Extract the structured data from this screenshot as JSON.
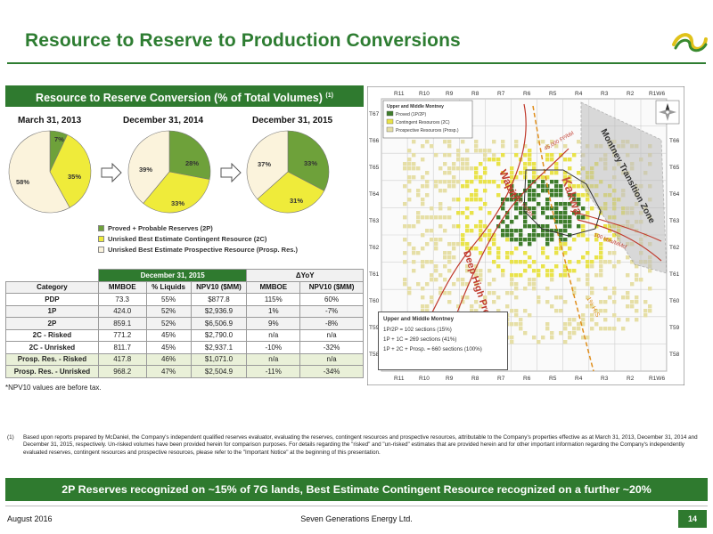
{
  "header": {
    "title": "Resource to Reserve to Production Conversions"
  },
  "left_panel": {
    "title": "Resource to Reserve Conversion (% of Total Volumes)",
    "title_sup": "(1)"
  },
  "pies": [
    {
      "title": "March 31, 2013",
      "labels": [
        "7%",
        "35%",
        "58%"
      ]
    },
    {
      "title": "December 31, 2014",
      "labels": [
        "28%",
        "33%",
        "39%"
      ]
    },
    {
      "title": "December 31, 2015",
      "labels": [
        "33%",
        "31%",
        "37%"
      ]
    }
  ],
  "chart_data": [
    {
      "type": "pie",
      "title": "March 31, 2013",
      "categories": [
        "Proved + Probable Reserves (2P)",
        "Unrisked Best Estimate Contingent Resource (2C)",
        "Unrisked Best Estimate Prospective Resource (Prosp. Res.)"
      ],
      "values": [
        7,
        35,
        58
      ]
    },
    {
      "type": "pie",
      "title": "December 31, 2014",
      "categories": [
        "Proved + Probable Reserves (2P)",
        "Unrisked Best Estimate Contingent Resource (2C)",
        "Unrisked Best Estimate Prospective Resource (Prosp. Res.)"
      ],
      "values": [
        28,
        33,
        39
      ]
    },
    {
      "type": "pie",
      "title": "December 31, 2015",
      "categories": [
        "Proved + Probable Reserves (2P)",
        "Unrisked Best Estimate Contingent Resource (2C)",
        "Unrisked Best Estimate Prospective Resource (Prosp. Res.)"
      ],
      "values": [
        33,
        31,
        37
      ]
    }
  ],
  "colors": {
    "proved": "#6ea13a",
    "contingent": "#efeb3a",
    "prospective": "#fbf3dc",
    "brand_green": "#2f7a2f"
  },
  "legend": [
    {
      "label": "Proved + Probable Reserves (2P)",
      "color": "#6ea13a"
    },
    {
      "label": "Unrisked Best Estimate Contingent Resource (2C)",
      "color": "#efeb3a"
    },
    {
      "label": "Unrisked Best Estimate Prospective Resource (Prosp. Res.)",
      "color": "#fbf3dc"
    }
  ],
  "table": {
    "group_dec": "December 31, 2015",
    "group_yoy": "ΔYoY",
    "columns": [
      "Category",
      "MMBOE",
      "% Liquids",
      "NPV10 ($MM)",
      "MMBOE",
      "NPV10 ($MM)"
    ],
    "rows": [
      [
        "PDP",
        "73.3",
        "55%",
        "$877.8",
        "115%",
        "60%"
      ],
      [
        "1P",
        "424.0",
        "52%",
        "$2,936.9",
        "1%",
        "-7%"
      ],
      [
        "2P",
        "859.1",
        "52%",
        "$6,506.9",
        "9%",
        "-8%"
      ],
      [
        "2C - Risked",
        "771.2",
        "45%",
        "$2,790.0",
        "n/a",
        "n/a"
      ],
      [
        "2C - Unrisked",
        "811.7",
        "45%",
        "$2,937.1",
        "-10%",
        "-32%"
      ],
      [
        "Prosp. Res. - Risked",
        "417.8",
        "46%",
        "$1,071.0",
        "n/a",
        "n/a"
      ],
      [
        "Prosp. Res. - Unrisked",
        "968.2",
        "47%",
        "$2,504.9",
        "-11%",
        "-34%"
      ]
    ],
    "note": "*NPV10 values are before tax."
  },
  "map": {
    "ranges_top": [
      "R11",
      "R10",
      "R9",
      "R8",
      "R7",
      "R6",
      "R5",
      "R4",
      "R3",
      "R2",
      "R1W6"
    ],
    "ranges_bottom": [
      "R11",
      "R10",
      "R9",
      "R8",
      "R7",
      "R6",
      "R5",
      "R4",
      "R3",
      "R2",
      "R1W6"
    ],
    "townships": [
      "T67",
      "T66",
      "T65",
      "T64",
      "T63",
      "T62",
      "T61",
      "T60",
      "T59",
      "T58"
    ],
    "legend_title": "Upper and Middle Montney",
    "legend_items": [
      "Proved (1P/2P)",
      "Contingent Resources (2C)",
      "Prospective Resources (Prosp.)"
    ],
    "labels": {
      "wapiti": "Wapiti",
      "deep_high_pressure": "Deep High Pressure",
      "kakwa": "Kakwa",
      "montney_zone": "Montney Transition Zone",
      "contour_45": "45,000 Ft³/bbl",
      "contour_30": "30,000 Ft³/bbl",
      "contour_100": "100 bbls/MMcf",
      "pct_1": "1% H₂S"
    },
    "box": {
      "title": "Upper and Middle Montney",
      "lines": [
        "1P/2P = 102 sections (15%)",
        "1P + 1C = 269 sections (41%)",
        "1P + 2C + Prosp. = 660 sections (100%)"
      ]
    }
  },
  "footnote": {
    "mark": "(1)",
    "text": "Based upon reports prepared by McDaniel, the Company's independent qualified reserves evaluator, evaluating the reserves, contingent resources and prospective resources, attributable to the Company's properties effective as at March 31, 2013, December 31, 2014 and December 31, 2015, respectively. Un-risked volumes have been provided herein for comparison purposes. For details regarding the \"risked\" and \"un-risked\" estimates that are provided herein and for other important information regarding the Company's independently evaluated reserves, contingent resources and prospective resources, please refer to the \"Important Notice\" at the beginning of this presentation."
  },
  "banner": "2P Reserves recognized on ~15% of 7G lands, Best Estimate Contingent Resource recognized on a further ~20%",
  "footer": {
    "date": "August 2016",
    "company": "Seven Generations Energy Ltd.",
    "page": "14"
  }
}
